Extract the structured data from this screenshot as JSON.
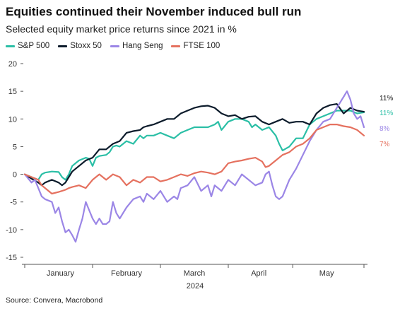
{
  "header": {
    "title": "Equities continued their November induced bull run",
    "subtitle": "Selected equity market price returns since 2021 in %"
  },
  "footer": {
    "source": "Source: Convera, Macrobond"
  },
  "chart_data": {
    "type": "line",
    "title": "Equities continued their November induced bull run",
    "subtitle": "Selected equity market price returns since 2021 in %",
    "xlabel": "2024",
    "ylabel": "",
    "ylim": [
      -15,
      20
    ],
    "yticks": [
      -15,
      -10,
      -5,
      0,
      5,
      10,
      15,
      20
    ],
    "xlim": [
      0,
      100
    ],
    "xticks": [
      {
        "label": "January",
        "x": 10.5
      },
      {
        "label": "February",
        "x": 30
      },
      {
        "label": "March",
        "x": 50
      },
      {
        "label": "April",
        "x": 69
      },
      {
        "label": "May",
        "x": 89
      }
    ],
    "legend_position": "top-left",
    "grid": false,
    "series": [
      {
        "name": "S&P 500",
        "color": "#2bbfa6",
        "end_label": "11%",
        "x": [
          0,
          2,
          4,
          5,
          6,
          8,
          10,
          11,
          12,
          13,
          14,
          15,
          16,
          18,
          19,
          20,
          21,
          22,
          24,
          25,
          26,
          27,
          28,
          30,
          32,
          34,
          35,
          36,
          38,
          40,
          42,
          44,
          46,
          48,
          50,
          52,
          54,
          56,
          57,
          58,
          60,
          62,
          64,
          66,
          67,
          68,
          70,
          72,
          74,
          75,
          76,
          78,
          80,
          82,
          84,
          86,
          88,
          90,
          92,
          94,
          96,
          98,
          100
        ],
        "y": [
          0,
          -0.5,
          -1,
          0,
          0.3,
          0.5,
          0.4,
          -0.5,
          -1,
          0,
          1.5,
          2,
          2.5,
          3,
          2.8,
          1.5,
          3,
          3.3,
          3.5,
          4,
          5,
          5.2,
          5,
          6,
          5.5,
          7,
          6.5,
          7,
          7,
          7.5,
          7,
          6.5,
          7.5,
          8,
          8.5,
          8.5,
          8.5,
          9,
          9.5,
          8,
          9.5,
          10,
          10,
          9.5,
          8.5,
          9,
          8,
          8.5,
          7,
          5.5,
          4.3,
          5,
          6.5,
          6.5,
          9,
          10,
          10.5,
          11,
          11.5,
          11.5,
          11.5,
          11,
          11.2
        ]
      },
      {
        "name": "Stoxx 50",
        "color": "#0c1b2b",
        "end_label": "11%",
        "x": [
          0,
          2,
          4,
          5,
          6,
          8,
          10,
          11,
          12,
          13,
          14,
          16,
          18,
          20,
          22,
          24,
          26,
          28,
          30,
          32,
          34,
          35,
          36,
          38,
          40,
          42,
          44,
          46,
          48,
          50,
          52,
          54,
          56,
          58,
          60,
          62,
          64,
          66,
          68,
          70,
          72,
          74,
          76,
          78,
          80,
          82,
          84,
          86,
          88,
          90,
          92,
          94,
          96,
          98,
          100
        ],
        "y": [
          0,
          -0.8,
          -1.5,
          -2,
          -1.5,
          -1,
          -1.5,
          -2,
          -1.5,
          -0.5,
          0.5,
          1.5,
          2.5,
          3,
          4.5,
          4.5,
          5.5,
          6,
          7.5,
          7.8,
          8,
          8.5,
          8.7,
          9,
          9.5,
          10,
          10,
          11,
          11.5,
          12,
          12.3,
          12.4,
          12,
          11,
          10.5,
          10.7,
          10,
          10.4,
          10.5,
          9.5,
          9,
          9.5,
          10,
          9.3,
          9.5,
          9.5,
          9,
          11,
          12,
          12.5,
          12.7,
          11,
          12,
          11.5,
          11.3
        ]
      },
      {
        "name": "Hang Seng",
        "color": "#9b86e6",
        "end_label": "8%",
        "x": [
          0,
          2,
          3,
          4,
          5,
          6,
          8,
          9,
          10,
          11,
          12,
          13,
          14,
          15,
          16,
          17,
          18,
          19,
          20,
          21,
          22,
          23,
          24,
          25,
          26,
          27,
          28,
          30,
          32,
          34,
          35,
          36,
          38,
          40,
          42,
          44,
          45,
          46,
          48,
          50,
          52,
          54,
          55,
          56,
          58,
          60,
          62,
          63,
          64,
          66,
          68,
          70,
          71,
          72,
          73,
          74,
          75,
          76,
          78,
          80,
          82,
          84,
          86,
          88,
          90,
          92,
          93,
          94,
          95,
          96,
          97,
          98,
          99,
          100
        ],
        "y": [
          0,
          -1.5,
          -1,
          -2.5,
          -4,
          -4.5,
          -5,
          -7,
          -6,
          -8.5,
          -10.5,
          -10,
          -11,
          -12.2,
          -10,
          -8,
          -5,
          -6.5,
          -8,
          -9,
          -8,
          -9,
          -9,
          -8.5,
          -5,
          -7,
          -8,
          -6,
          -4.5,
          -4,
          -5,
          -3.5,
          -4.5,
          -3,
          -5,
          -4,
          -4.5,
          -2.5,
          -2,
          -0.5,
          -3,
          -2,
          -4,
          -2,
          -3,
          -1,
          -2,
          -1,
          0,
          -1,
          -2,
          -1.5,
          0,
          0.5,
          -2,
          -4,
          -4.5,
          -4,
          -1,
          1,
          3.5,
          6,
          8,
          9.5,
          10,
          12,
          13,
          14,
          15,
          13.5,
          11,
          10,
          10.5,
          8.5
        ]
      },
      {
        "name": "FTSE 100",
        "color": "#e5715f",
        "end_label": "7%",
        "x": [
          0,
          2,
          4,
          5,
          6,
          8,
          10,
          11,
          12,
          13,
          14,
          16,
          18,
          20,
          22,
          24,
          26,
          28,
          30,
          32,
          34,
          36,
          38,
          40,
          42,
          44,
          46,
          48,
          50,
          52,
          54,
          56,
          58,
          60,
          62,
          64,
          66,
          68,
          70,
          71,
          72,
          74,
          76,
          78,
          80,
          82,
          84,
          86,
          88,
          90,
          92,
          94,
          96,
          98,
          100
        ],
        "y": [
          0,
          -0.5,
          -1,
          -2,
          -2.5,
          -3.5,
          -3.2,
          -3,
          -2.8,
          -2.5,
          -2.3,
          -2,
          -2.5,
          -1,
          0,
          -1,
          0,
          -0.5,
          -2,
          -1,
          -1.5,
          -0.5,
          -0.5,
          -1.3,
          -1,
          -0.5,
          0,
          -0.3,
          0.2,
          0.5,
          0.3,
          0,
          0.5,
          2,
          2.3,
          2.5,
          2.8,
          3,
          2.3,
          1.3,
          1.5,
          2.5,
          3.5,
          4,
          5,
          5.5,
          6.5,
          8,
          8.5,
          9,
          9,
          8.7,
          8.5,
          8,
          7
        ]
      }
    ]
  }
}
